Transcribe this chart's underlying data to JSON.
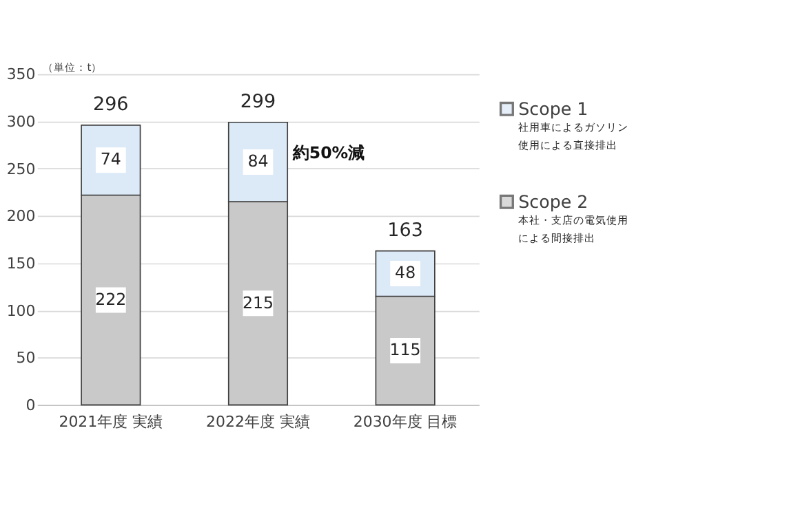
{
  "chart_data": {
    "type": "bar",
    "stacked": true,
    "categories": [
      "2021年度 実績",
      "2022年度 実績",
      "2030年度 目標"
    ],
    "series": [
      {
        "name": "Scope 2",
        "color": "#c9c9c9",
        "values": [
          222,
          215,
          115
        ]
      },
      {
        "name": "Scope 1",
        "color": "#dce9f7",
        "values": [
          74,
          84,
          48
        ]
      }
    ],
    "totals": [
      "296",
      "299",
      "163"
    ],
    "data_labels": true,
    "ylim": [
      0,
      350
    ],
    "yticks": [
      0,
      50,
      100,
      150,
      200,
      250,
      300,
      350
    ],
    "grid": "y",
    "legend": "right",
    "annotations": [
      "（単位：t）",
      "約50%減",
      "社用車によるガソリン",
      "使用による直接排出",
      "本社・支店の電気使用",
      "による間接排出"
    ]
  }
}
